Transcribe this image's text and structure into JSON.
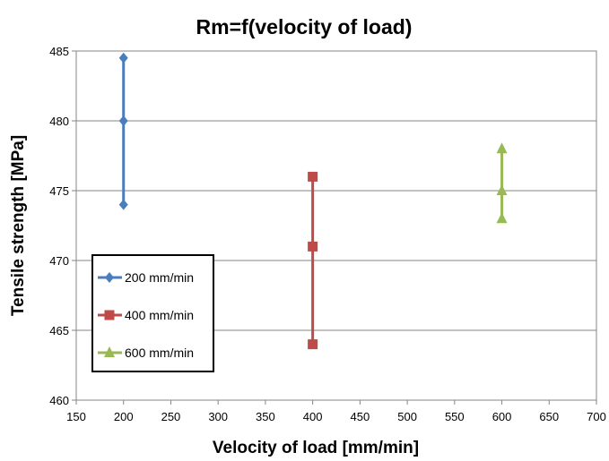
{
  "chart_data": {
    "type": "scatter",
    "title": "Rm=f(velocity of load)",
    "xlabel": "Velocity of load [mm/min]",
    "ylabel": "Tensile strength [MPa]",
    "xlim": [
      150,
      700
    ],
    "ylim": [
      460,
      485
    ],
    "xticks": [
      150,
      200,
      250,
      300,
      350,
      400,
      450,
      500,
      550,
      600,
      650,
      700
    ],
    "yticks": [
      460,
      465,
      470,
      475,
      480,
      485
    ],
    "grid": "horizontal",
    "legend_position": "bottom-left",
    "series": [
      {
        "name": "200 mm/min",
        "color": "#4A7EBB",
        "marker": "diamond",
        "x": [
          200,
          200,
          200
        ],
        "y": [
          474,
          480,
          484.5
        ]
      },
      {
        "name": "400 mm/min",
        "color": "#BE4B48",
        "marker": "square",
        "x": [
          400,
          400,
          400
        ],
        "y": [
          464,
          471,
          476
        ]
      },
      {
        "name": "600 mm/min",
        "color": "#98B954",
        "marker": "triangle",
        "x": [
          600,
          600,
          600
        ],
        "y": [
          473,
          475,
          478
        ]
      }
    ]
  }
}
